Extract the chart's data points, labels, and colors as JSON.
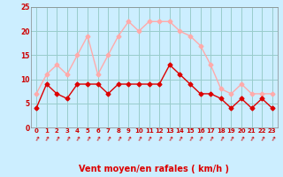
{
  "hours": [
    0,
    1,
    2,
    3,
    4,
    5,
    6,
    7,
    8,
    9,
    10,
    11,
    12,
    13,
    14,
    15,
    16,
    17,
    18,
    19,
    20,
    21,
    22,
    23
  ],
  "vent_moyen": [
    4,
    9,
    7,
    6,
    9,
    9,
    9,
    7,
    9,
    9,
    9,
    9,
    9,
    13,
    11,
    9,
    7,
    7,
    6,
    4,
    6,
    4,
    6,
    4
  ],
  "rafales": [
    7,
    11,
    13,
    11,
    15,
    19,
    11,
    15,
    19,
    22,
    20,
    22,
    22,
    22,
    20,
    19,
    17,
    13,
    8,
    7,
    9,
    7,
    7,
    7
  ],
  "color_moyen": "#dd0000",
  "color_rafales": "#ffaaaa",
  "bg_color": "#cceeff",
  "grid_color": "#99cccc",
  "xlabel": "Vent moyen/en rafales ( km/h )",
  "xlabel_color": "#dd0000",
  "ylim": [
    0,
    25
  ],
  "yticks": [
    0,
    5,
    10,
    15,
    20,
    25
  ],
  "arrow_symbol": "↑"
}
